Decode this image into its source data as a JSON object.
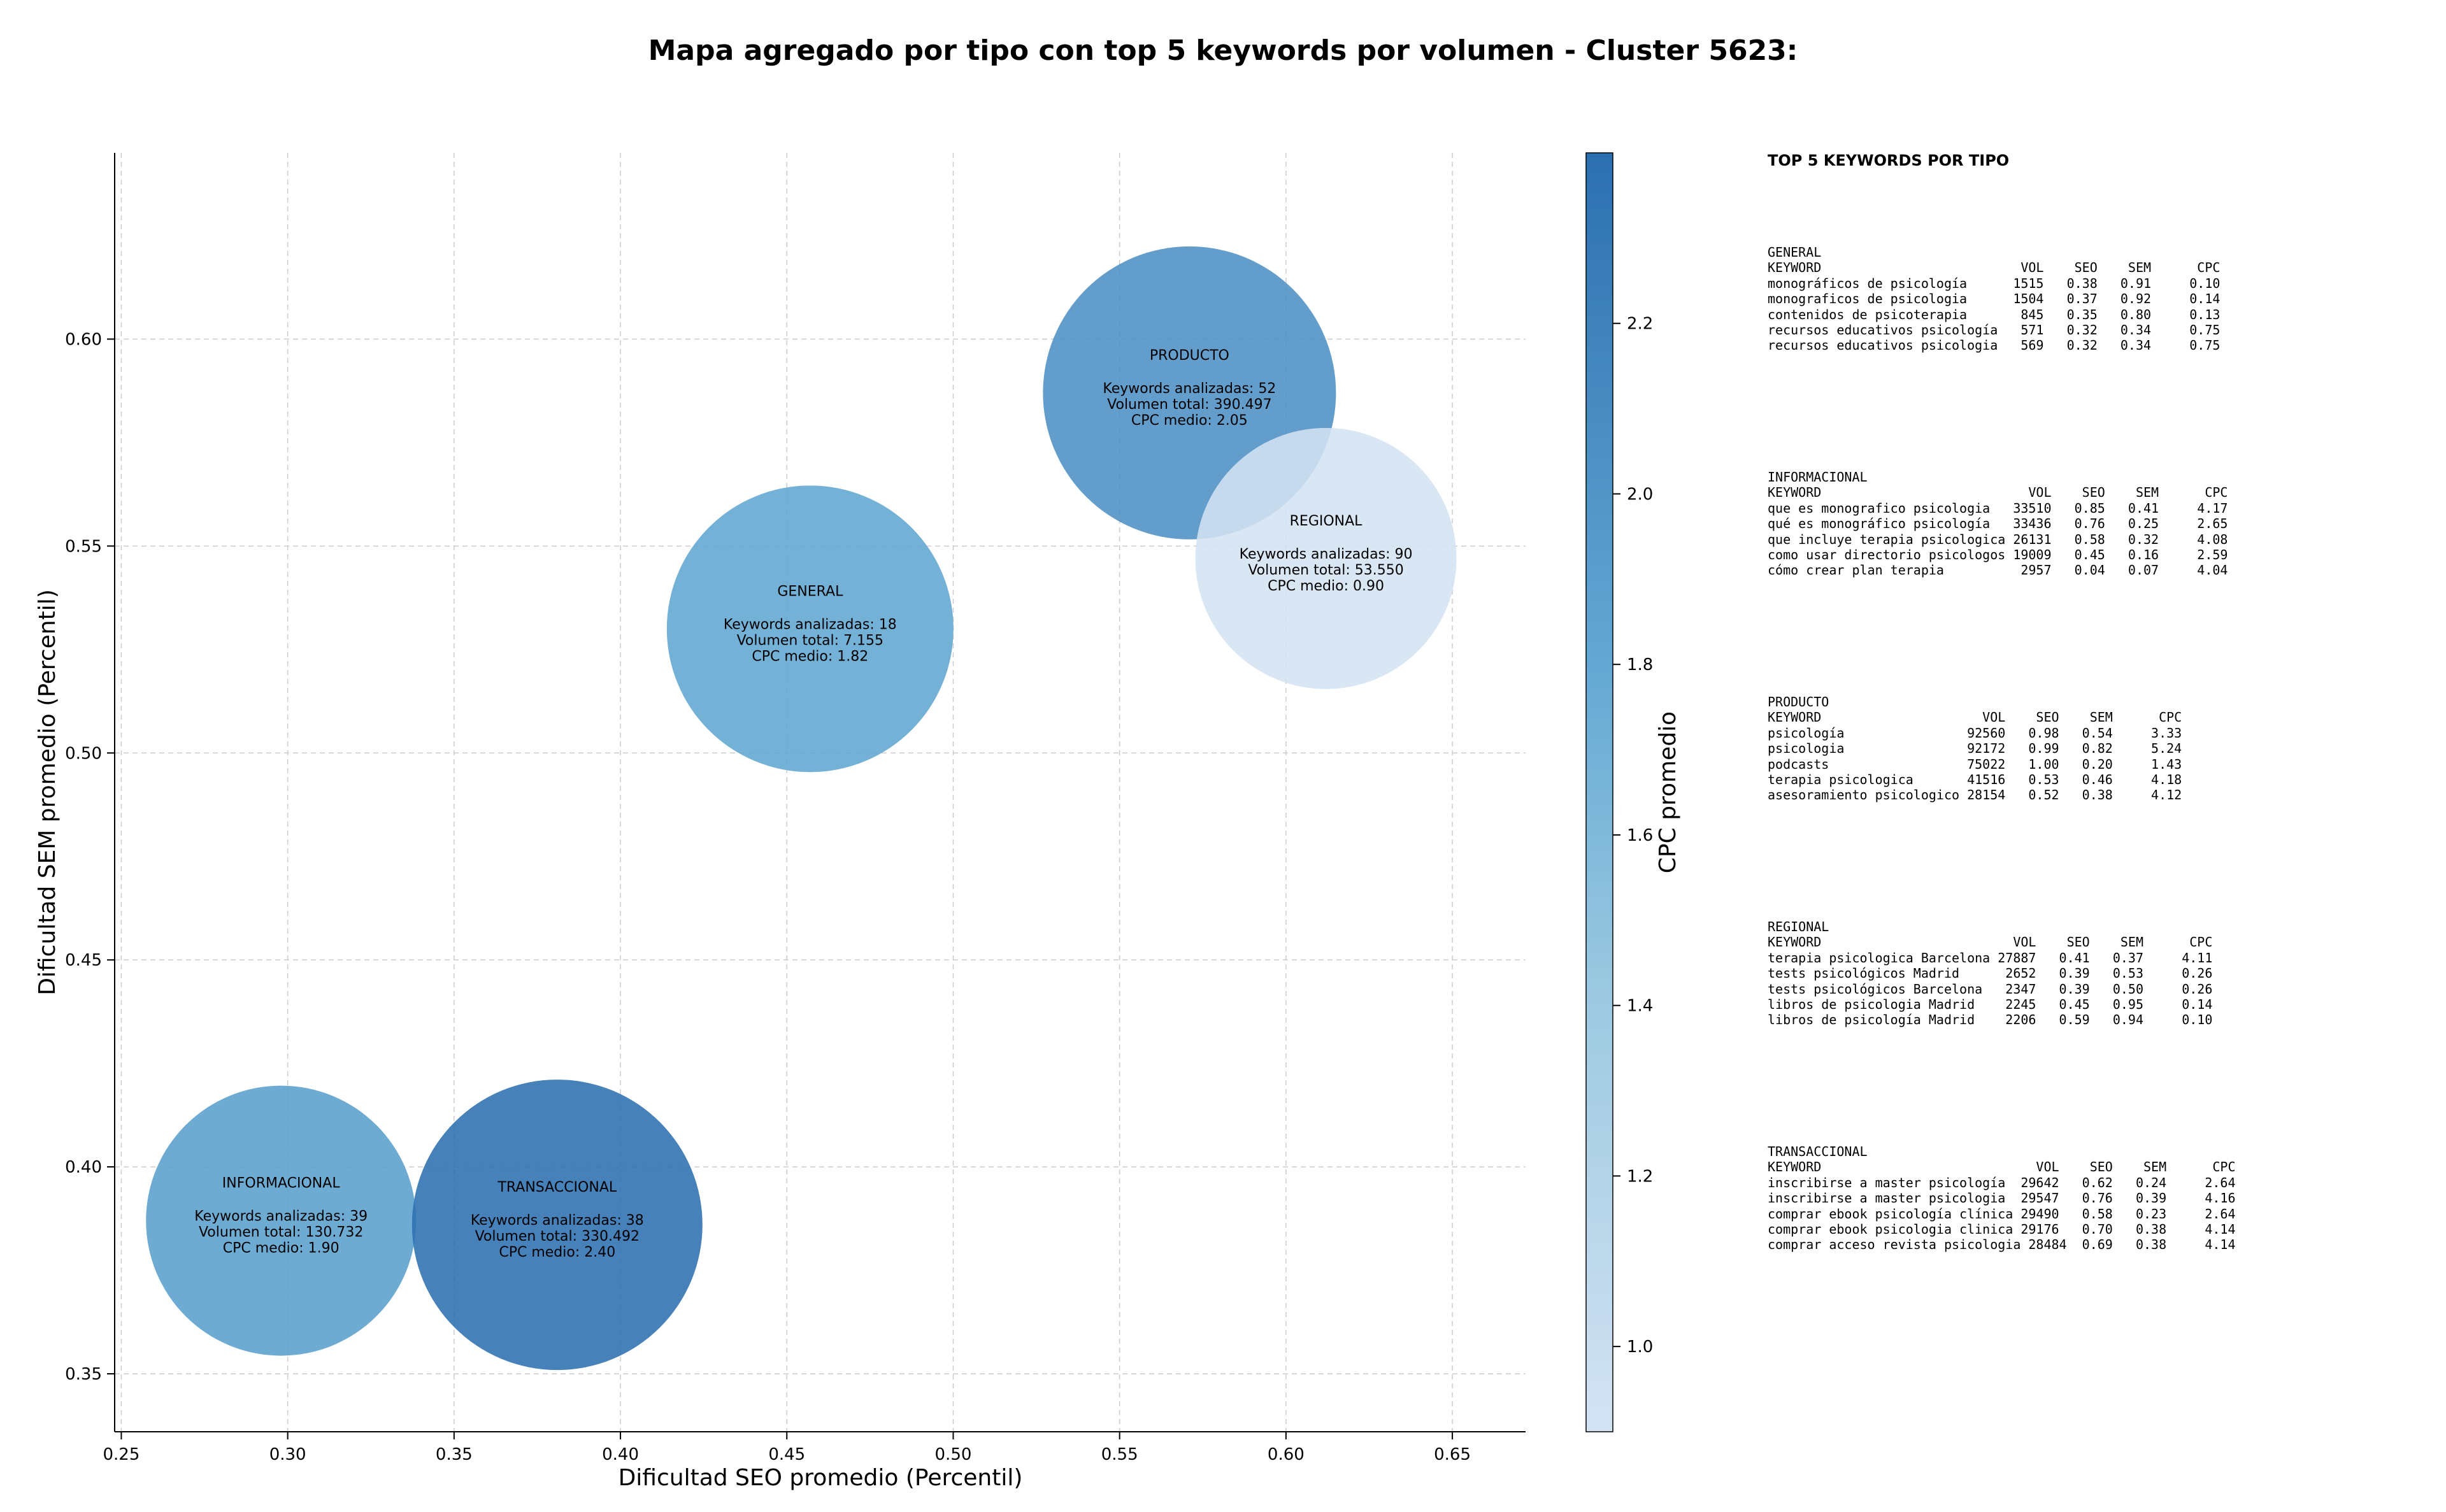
{
  "chart_data": {
    "type": "scatter",
    "title": "Mapa agregado por tipo con top 5 keywords por volumen - Cluster 5623:",
    "xlabel": "Dificultad SEO promedio (Percentil)",
    "ylabel": "Dificultad SEM promedio (Percentil)",
    "colorbar_label": "CPC promedio",
    "xlim": [
      0.248,
      0.672
    ],
    "ylim": [
      0.336,
      0.645
    ],
    "xticks": [
      "0.25",
      "0.30",
      "0.35",
      "0.40",
      "0.45",
      "0.50",
      "0.55",
      "0.60",
      "0.65"
    ],
    "yticks": [
      "0.35",
      "0.40",
      "0.45",
      "0.50",
      "0.55",
      "0.60"
    ],
    "colorbar_range": [
      0.9,
      2.4
    ],
    "colorbar_ticks": [
      "1.0",
      "1.2",
      "1.4",
      "1.6",
      "1.8",
      "2.0",
      "2.2"
    ],
    "grid": true,
    "points": [
      {
        "label": "GENERAL",
        "x": 0.457,
        "y": 0.53,
        "cpc": 1.82,
        "line1": "Keywords analizadas: 18",
        "line2": "Volumen total: 7.155",
        "line3": "CPC medio: 1.82"
      },
      {
        "label": "INFORMACIONAL",
        "x": 0.298,
        "y": 0.387,
        "cpc": 1.9,
        "line1": "Keywords analizadas: 39",
        "line2": "Volumen total: 130.732",
        "line3": "CPC medio: 1.90"
      },
      {
        "label": "PRODUCTO",
        "x": 0.571,
        "y": 0.587,
        "cpc": 2.05,
        "line1": "Keywords analizadas: 52",
        "line2": "Volumen total: 390.497",
        "line3": "CPC medio: 2.05"
      },
      {
        "label": "REGIONAL",
        "x": 0.612,
        "y": 0.547,
        "cpc": 0.9,
        "line1": "Keywords analizadas: 90",
        "line2": "Volumen total: 53.550",
        "line3": "CPC medio: 0.90"
      },
      {
        "label": "TRANSACCIONAL",
        "x": 0.381,
        "y": 0.386,
        "cpc": 2.4,
        "line1": "Keywords analizadas: 38",
        "line2": "Volumen total: 330.492",
        "line3": "CPC medio: 2.40"
      }
    ],
    "colors": {
      "low": "#d4e3f3",
      "mid": "#63a8d3",
      "high": "#2c6fb0"
    }
  },
  "side_panel": {
    "heading": "TOP 5 KEYWORDS POR TIPO",
    "blocks": [
      {
        "lines": [
          "GENERAL",
          "KEYWORD                          VOL    SEO    SEM      CPC",
          "monográficos de psicología      1515   0.38   0.91     0.10",
          "monograficos de psicologia      1504   0.37   0.92     0.14",
          "contenidos de psicoterapia       845   0.35   0.80     0.13",
          "recursos educativos psicología   571   0.32   0.34     0.75",
          "recursos educativos psicologia   569   0.32   0.34     0.75"
        ]
      },
      {
        "lines": [
          "INFORMACIONAL",
          "KEYWORD                           VOL    SEO    SEM      CPC",
          "que es monografico psicologia   33510   0.85   0.41     4.17",
          "qué es monográfico psicología   33436   0.76   0.25     2.65",
          "que incluye terapia psicologica 26131   0.58   0.32     4.08",
          "como usar directorio psicologos 19009   0.45   0.16     2.59",
          "cómo crear plan terapia          2957   0.04   0.07     4.04"
        ]
      },
      {
        "lines": [
          "PRODUCTO",
          "KEYWORD                     VOL    SEO    SEM      CPC",
          "psicología                92560   0.98   0.54     3.33",
          "psicologia                92172   0.99   0.82     5.24",
          "podcasts                  75022   1.00   0.20     1.43",
          "terapia psicologica       41516   0.53   0.46     4.18",
          "asesoramiento psicologico 28154   0.52   0.38     4.12"
        ]
      },
      {
        "lines": [
          "REGIONAL",
          "KEYWORD                         VOL    SEO    SEM      CPC",
          "terapia psicologica Barcelona 27887   0.41   0.37     4.11",
          "tests psicológicos Madrid      2652   0.39   0.53     0.26",
          "tests psicológicos Barcelona   2347   0.39   0.50     0.26",
          "libros de psicologia Madrid    2245   0.45   0.95     0.14",
          "libros de psicología Madrid    2206   0.59   0.94     0.10"
        ]
      },
      {
        "lines": [
          "TRANSACCIONAL",
          "KEYWORD                            VOL    SEO    SEM      CPC",
          "inscribirse a master psicología  29642   0.62   0.24     2.64",
          "inscribirse a master psicologia  29547   0.76   0.39     4.16",
          "comprar ebook psicología clínica 29490   0.58   0.23     2.64",
          "comprar ebook psicologia clinica 29176   0.70   0.38     4.14",
          "comprar acceso revista psicologia 28484  0.69   0.38     4.14"
        ]
      }
    ]
  }
}
